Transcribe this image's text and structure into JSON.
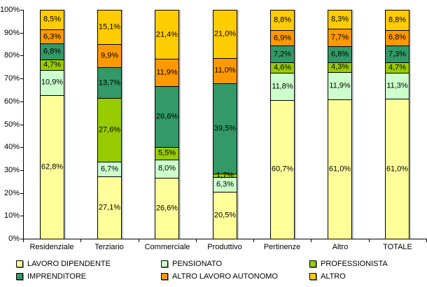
{
  "chart_data": {
    "type": "bar",
    "subtype": "stacked-100-percent",
    "title": "",
    "xlabel": "",
    "ylabel": "",
    "ylim": [
      0,
      100
    ],
    "grid": false,
    "legend_position": "bottom",
    "y_ticks": [
      "0%",
      "10%",
      "20%",
      "30%",
      "40%",
      "50%",
      "60%",
      "70%",
      "80%",
      "90%",
      "100%"
    ],
    "categories": [
      "Residenziale",
      "Terziario",
      "Commerciale",
      "Produttivo",
      "Pertinenze",
      "Altro",
      "TOTALE"
    ],
    "series": [
      {
        "name": "LAVORO DIPENDENTE",
        "color": "#FFFF99",
        "values": [
          62.8,
          27.1,
          26.6,
          20.5,
          60.7,
          61.0,
          61.0
        ],
        "labels": [
          "62,8%",
          "27,1%",
          "26,6%",
          "20,5%",
          "60,7%",
          "61,0%",
          "61,0%"
        ]
      },
      {
        "name": "PENSIONATO",
        "color": "#CCFFCC",
        "values": [
          10.9,
          6.7,
          8.0,
          6.3,
          11.8,
          11.9,
          11.3
        ],
        "labels": [
          "10,9%",
          "6,7%",
          "8,0%",
          "6,3%",
          "11,8%",
          "11,9%",
          "11,3%"
        ]
      },
      {
        "name": "PROFESSIONISTA",
        "color": "#99CC00",
        "values": [
          4.7,
          27.6,
          5.5,
          1.7,
          4.6,
          4.3,
          4.7
        ],
        "labels": [
          "4,7%",
          "27,6%",
          "5,5%",
          "1,7%",
          "4,6%",
          "4,3%",
          "4,7%"
        ]
      },
      {
        "name": "IMPRENDITORE",
        "color": "#339966",
        "values": [
          6.8,
          13.7,
          26.6,
          39.5,
          7.2,
          6.8,
          7.3
        ],
        "labels": [
          "6,8%",
          "13,7%",
          "26,6%",
          "39,5%",
          "7,2%",
          "6,8%",
          "7,3%"
        ]
      },
      {
        "name": "ALTRO LAVORO AUTONOMO",
        "color": "#FF9900",
        "values": [
          6.3,
          9.9,
          11.9,
          11.0,
          6.9,
          7.7,
          6.8
        ],
        "labels": [
          "6,3%",
          "9,9%",
          "11,9%",
          "11,0%",
          "6,9%",
          "7,7%",
          "6,8%"
        ]
      },
      {
        "name": "ALTRO",
        "color": "#FFCC00",
        "values": [
          8.5,
          15.1,
          21.4,
          21.0,
          8.8,
          8.3,
          8.8
        ],
        "labels": [
          "8,5%",
          "15,1%",
          "21,4%",
          "21,0%",
          "8,8%",
          "8,3%",
          "8,8%"
        ]
      }
    ]
  }
}
